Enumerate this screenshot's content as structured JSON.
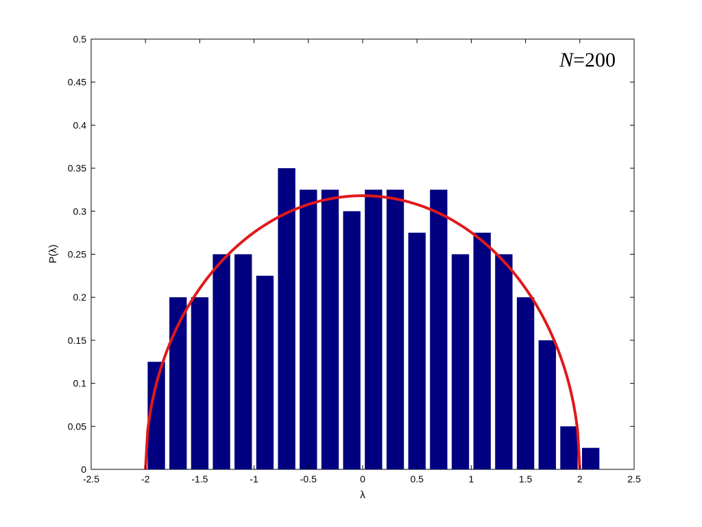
{
  "chart_data": {
    "type": "bar",
    "title": "",
    "xlabel": "λ",
    "ylabel": "P(λ)",
    "xlim": [
      -2.5,
      2.5
    ],
    "ylim": [
      0,
      0.5
    ],
    "xticks": [
      -2.5,
      -2,
      -1.5,
      -1,
      -0.5,
      0,
      0.5,
      1,
      1.5,
      2,
      2.5
    ],
    "xtick_labels": [
      "-2.5",
      "-2",
      "-1.5",
      "-1",
      "-0.5",
      "0",
      "0.5",
      "1",
      "1.5",
      "2",
      "2.5"
    ],
    "yticks": [
      0,
      0.05,
      0.1,
      0.15,
      0.2,
      0.25,
      0.3,
      0.35,
      0.4,
      0.45,
      0.5
    ],
    "ytick_labels": [
      "0",
      "0.05",
      "0.1",
      "0.15",
      "0.2",
      "0.25",
      "0.3",
      "0.35",
      "0.4",
      "0.45",
      "0.5"
    ],
    "grid": false,
    "bar_color": "#000080",
    "curve_color": "#e0191b",
    "annotation": {
      "italic": "N",
      "text": "=200",
      "placement": "top-right"
    },
    "bars": {
      "x": [
        -1.9,
        -1.7,
        -1.5,
        -1.3,
        -1.1,
        -0.9,
        -0.7,
        -0.5,
        -0.3,
        -0.1,
        0.1,
        0.3,
        0.5,
        0.7,
        0.9,
        1.1,
        1.3,
        1.5,
        1.7,
        1.9,
        2.1
      ],
      "values": [
        0.125,
        0.2,
        0.2,
        0.25,
        0.25,
        0.225,
        0.35,
        0.325,
        0.325,
        0.3,
        0.325,
        0.325,
        0.275,
        0.325,
        0.25,
        0.275,
        0.25,
        0.2,
        0.15,
        0.05,
        0.025
      ],
      "width": 0.16
    },
    "curve": {
      "type": "semicircle",
      "center": 0,
      "radius": 2,
      "peak": 0.318
    }
  }
}
